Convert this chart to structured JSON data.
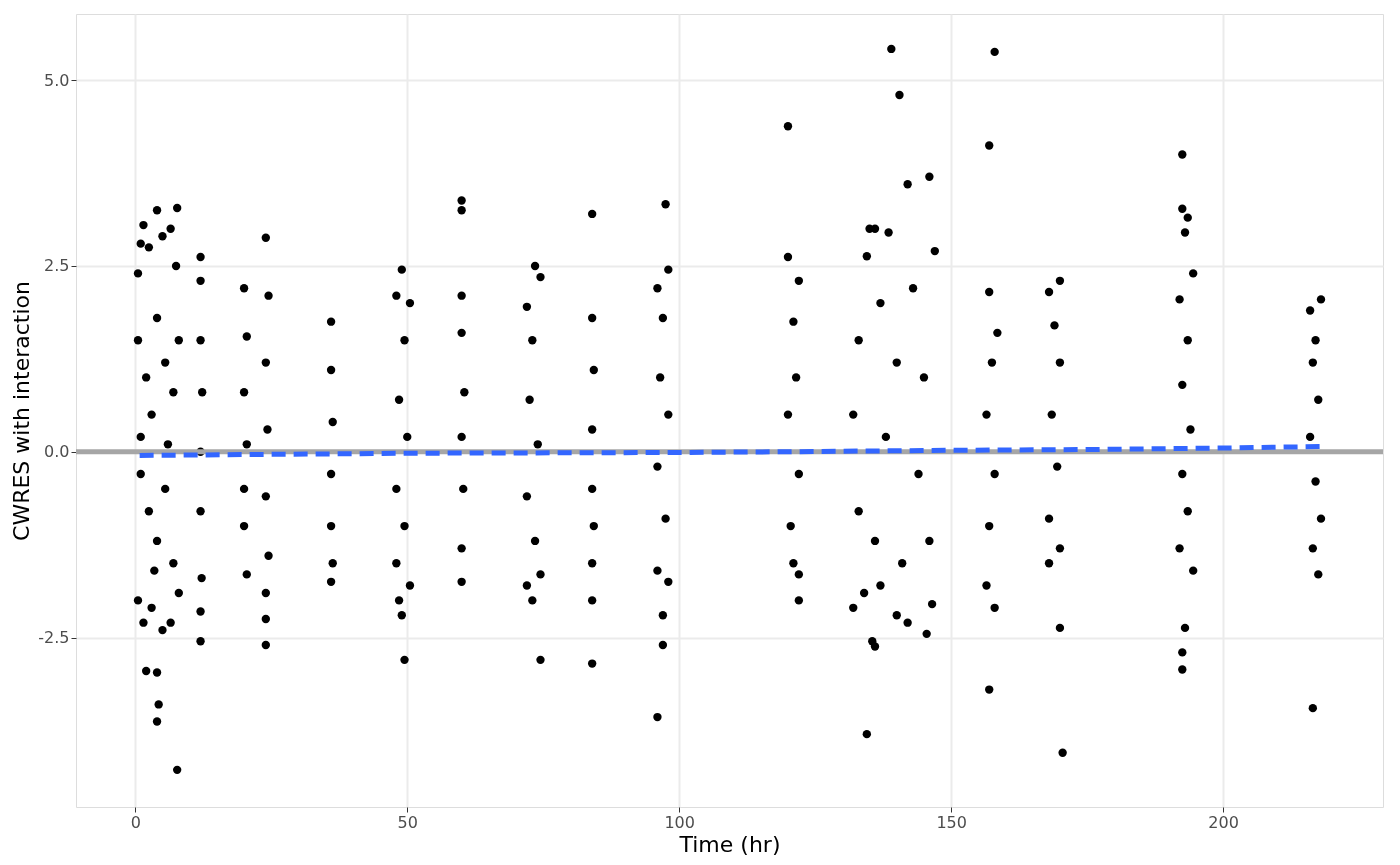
{
  "chart_data": {
    "type": "scatter",
    "xlabel": "Time (hr)",
    "ylabel": "CWRES with interaction",
    "xlim": [
      -10.9,
      229.4
    ],
    "ylim": [
      -4.78,
      5.89
    ],
    "xticks": [
      0,
      50,
      100,
      150,
      200
    ],
    "yticks": [
      -2.5,
      {
        "value": 0,
        "label": "0.0"
      },
      2.5,
      {
        "value": 5,
        "label": "5.0"
      }
    ],
    "grid": true,
    "ref_lines": [
      {
        "axis": "y",
        "value": 0,
        "color": "#a6a6a6"
      }
    ],
    "series": [
      {
        "type": "scatter",
        "color": "#000000",
        "marker": "circle",
        "x": [
          0.5,
          1,
          1.5,
          2.5,
          4,
          5,
          6.5,
          7.7,
          7.5,
          0.5,
          2,
          3,
          4,
          5.5,
          7,
          1,
          2.5,
          4,
          5.5,
          7,
          0.5,
          1.5,
          3,
          5,
          6.5,
          8,
          2,
          4,
          4.3,
          4,
          7.7,
          1,
          6,
          8,
          3.5,
          12,
          12,
          12,
          12.3,
          12,
          12,
          12.2,
          12,
          12,
          20,
          20.5,
          20,
          20.5,
          20,
          20,
          20.5,
          24,
          24.5,
          24,
          24.3,
          24,
          24.5,
          24,
          24,
          24,
          36,
          36,
          36.3,
          36,
          36,
          36.3,
          36,
          48,
          49,
          50.5,
          49.5,
          48.5,
          50,
          48,
          49.5,
          48,
          48.5,
          49,
          49.5,
          50.5,
          60,
          60,
          60,
          60,
          60.5,
          60,
          60.3,
          60,
          60,
          72,
          73.5,
          74.5,
          73,
          72.5,
          74,
          72,
          73.5,
          72,
          73,
          74.5,
          74.5,
          84,
          84,
          84.3,
          84,
          84,
          84.3,
          84,
          84,
          84,
          97.5,
          96,
          98,
          97,
          96.5,
          98,
          96,
          97.5,
          96,
          97,
          97,
          98,
          96,
          120,
          120,
          122,
          121,
          121.5,
          120,
          122,
          120.5,
          121,
          122,
          122,
          139,
          140.5,
          142,
          146,
          135,
          136,
          134.5,
          138.5,
          147,
          143,
          137,
          133,
          140,
          145,
          132,
          138,
          144,
          133,
          136,
          141,
          146,
          132,
          134,
          137,
          140,
          142,
          145.5,
          146.5,
          135.5,
          136,
          134.5,
          158,
          157,
          157,
          158.5,
          157.5,
          156.5,
          158,
          157,
          156.5,
          158,
          157,
          168,
          170,
          169,
          170,
          168.5,
          169.5,
          168,
          170,
          168,
          170,
          170.5,
          192.5,
          192.5,
          193.5,
          193,
          194.5,
          192,
          193.5,
          192.5,
          194,
          192.5,
          193.5,
          192,
          194.5,
          193,
          192.5,
          192.5,
          218,
          216,
          217,
          216.5,
          217.5,
          216,
          217,
          218,
          216.5,
          217.5,
          216.5
        ],
        "values": [
          2.4,
          2.8,
          3.05,
          2.75,
          3.25,
          2.9,
          3.0,
          3.28,
          2.5,
          1.5,
          1.0,
          0.5,
          1.8,
          1.2,
          0.8,
          -0.3,
          -0.8,
          -1.2,
          -0.5,
          -1.5,
          -2.0,
          -2.3,
          -2.1,
          -2.4,
          -2.3,
          -1.9,
          -2.95,
          -2.97,
          -3.4,
          -3.63,
          -4.28,
          0.2,
          0.1,
          1.5,
          -1.6,
          2.62,
          2.3,
          1.5,
          0.8,
          0,
          -0.8,
          -1.7,
          -2.15,
          -2.55,
          2.2,
          1.55,
          0.8,
          0.1,
          -0.5,
          -1.0,
          -1.65,
          2.88,
          2.1,
          1.2,
          0.3,
          -0.6,
          -1.4,
          -1.9,
          -2.25,
          -2.6,
          1.75,
          1.1,
          0.4,
          -0.3,
          -1.0,
          -1.5,
          -1.75,
          2.1,
          2.45,
          2.0,
          1.5,
          0.7,
          0.2,
          -0.5,
          -1.0,
          -1.5,
          -2.0,
          -2.2,
          -2.8,
          -1.8,
          3.38,
          3.25,
          2.1,
          1.6,
          0.8,
          0.2,
          -0.5,
          -1.3,
          -1.75,
          1.95,
          2.5,
          2.35,
          1.5,
          0.7,
          0.1,
          -0.6,
          -1.2,
          -1.8,
          -2.0,
          -1.65,
          -2.8,
          3.2,
          1.8,
          1.1,
          0.3,
          -0.5,
          -1.0,
          -1.5,
          -2.0,
          -2.85,
          3.33,
          2.2,
          2.45,
          1.8,
          1.0,
          0.5,
          -0.2,
          -0.9,
          -1.6,
          -2.2,
          -2.6,
          -1.75,
          -3.57,
          4.38,
          2.62,
          2.3,
          1.75,
          1.0,
          0.5,
          -0.3,
          -1.0,
          -1.5,
          -1.65,
          -2.0,
          5.42,
          4.8,
          3.6,
          3.7,
          3.0,
          3.0,
          2.63,
          2.95,
          2.7,
          2.2,
          2.0,
          1.5,
          1.2,
          1.0,
          0.5,
          0.2,
          -0.3,
          -0.8,
          -1.2,
          -1.5,
          -1.2,
          -2.1,
          -1.9,
          -1.8,
          -2.2,
          -2.3,
          -2.45,
          -2.05,
          -2.55,
          -2.62,
          -3.8,
          5.38,
          4.12,
          2.15,
          1.6,
          1.2,
          0.5,
          -0.3,
          -1.0,
          -1.8,
          -2.1,
          -3.2,
          2.15,
          2.3,
          1.7,
          1.2,
          0.5,
          -0.2,
          -0.9,
          -1.3,
          -1.5,
          -2.37,
          -4.05,
          4.0,
          3.27,
          3.15,
          2.95,
          2.4,
          2.05,
          1.5,
          0.9,
          0.3,
          -0.3,
          -0.8,
          -1.3,
          -1.6,
          -2.37,
          -2.7,
          -2.93,
          2.05,
          1.9,
          1.5,
          1.2,
          0.7,
          0.2,
          -0.4,
          -0.9,
          -1.3,
          -1.65,
          -3.45
        ]
      },
      {
        "type": "line",
        "color": "#3366ff",
        "line_style": "dashed",
        "x": [
          0.8,
          50,
          100,
          120,
          150,
          175,
          200,
          218
        ],
        "values": [
          -0.05,
          -0.02,
          -0.01,
          0,
          0.02,
          0.03,
          0.05,
          0.07
        ]
      }
    ]
  }
}
